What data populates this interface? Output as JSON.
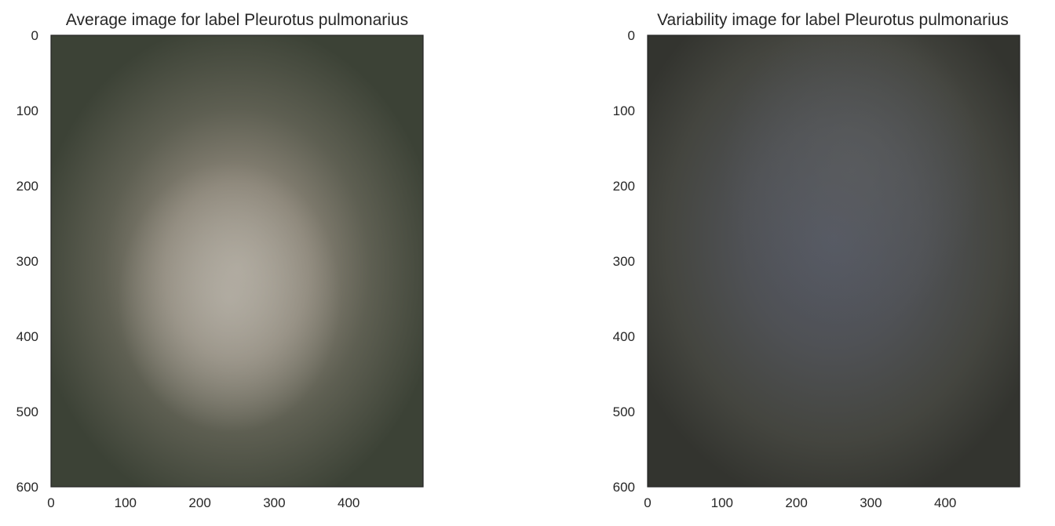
{
  "chart_data": [
    {
      "type": "image",
      "title": "Average image for label Pleurotus pulmonarius",
      "xlim": [
        0,
        500
      ],
      "ylim": [
        600,
        0
      ],
      "xticks": [
        0,
        100,
        200,
        300,
        400
      ],
      "yticks": [
        0,
        100,
        200,
        300,
        400,
        500,
        600
      ],
      "grid": false,
      "colors": {
        "background": "#3d4236",
        "edges": "#363a30",
        "center": "#a7a194",
        "mid": "#6e6a5e"
      }
    },
    {
      "type": "image",
      "title": "Variability image for label Pleurotus pulmonarius",
      "xlim": [
        0,
        500
      ],
      "ylim": [
        600,
        0
      ],
      "xticks": [
        0,
        100,
        200,
        300,
        400
      ],
      "yticks": [
        0,
        100,
        200,
        300,
        400,
        500,
        600
      ],
      "grid": false,
      "colors": {
        "background": "#3a3a3a",
        "edges": "#2f302c",
        "center": "#565a66",
        "mid": "#4e4f52"
      }
    }
  ]
}
